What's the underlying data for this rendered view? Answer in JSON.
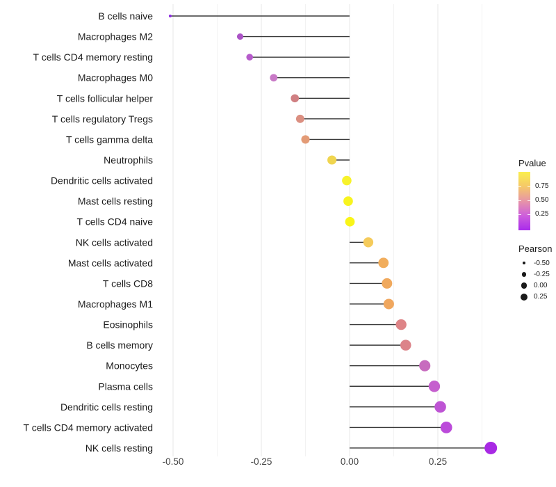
{
  "chart_data": {
    "type": "lollipop",
    "orientation": "horizontal",
    "title": "",
    "xlabel": "",
    "ylabel": "",
    "grid": "vertical-only",
    "x_axis": {
      "tick_labels": [
        "-0.50",
        "-0.25",
        "0.00",
        "0.25"
      ],
      "tick_values": [
        -0.5,
        -0.25,
        0.0,
        0.25
      ],
      "xlim": [
        -0.552,
        0.413
      ],
      "minor_tick_values": [
        -0.375,
        -0.125,
        0.125,
        0.375
      ]
    },
    "points": [
      {
        "label": "B cells naive",
        "pearson": -0.508,
        "color": "#8C2BE0"
      },
      {
        "label": "Macrophages M2",
        "pearson": -0.31,
        "color": "#AB53C6"
      },
      {
        "label": "T cells CD4 memory resting",
        "pearson": -0.283,
        "color": "#B65BCB"
      },
      {
        "label": "Macrophages M0",
        "pearson": -0.215,
        "color": "#C879C6"
      },
      {
        "label": "T cells follicular helper",
        "pearson": -0.155,
        "color": "#D08083"
      },
      {
        "label": "T cells regulatory  Tregs",
        "pearson": -0.14,
        "color": "#DB8F81"
      },
      {
        "label": "T cells gamma delta",
        "pearson": -0.125,
        "color": "#E39B76"
      },
      {
        "label": "Neutrophils",
        "pearson": -0.05,
        "color": "#F0D54F"
      },
      {
        "label": "Dendritic cells activated",
        "pearson": -0.008,
        "color": "#F7F22B"
      },
      {
        "label": "Mast cells resting",
        "pearson": -0.004,
        "color": "#F8F41F"
      },
      {
        "label": "T cells CD4 naive",
        "pearson": 0.001,
        "color": "#F9F518"
      },
      {
        "label": "NK cells activated",
        "pearson": 0.053,
        "color": "#F5CB5B"
      },
      {
        "label": "Mast cells activated",
        "pearson": 0.096,
        "color": "#F1AD5C"
      },
      {
        "label": "T cells CD8",
        "pearson": 0.106,
        "color": "#F0A95D"
      },
      {
        "label": "Macrophages M1",
        "pearson": 0.111,
        "color": "#F0A75E"
      },
      {
        "label": "Eosinophils",
        "pearson": 0.146,
        "color": "#DE8487"
      },
      {
        "label": "B cells memory",
        "pearson": 0.159,
        "color": "#DC8389"
      },
      {
        "label": "Monocytes",
        "pearson": 0.213,
        "color": "#C76BBE"
      },
      {
        "label": "Plasma cells",
        "pearson": 0.24,
        "color": "#C55FCE"
      },
      {
        "label": "Dendritic cells resting",
        "pearson": 0.257,
        "color": "#BE54D4"
      },
      {
        "label": "T cells CD4 memory activated",
        "pearson": 0.274,
        "color": "#BB4ADA"
      },
      {
        "label": "NK cells resting",
        "pearson": 0.4,
        "color": "#A829E4"
      }
    ],
    "legends": {
      "pvalue": {
        "title": "Pvalue",
        "tick_labels": [
          "0.75",
          "0.50",
          "0.25"
        ],
        "gradient_stops": [
          "#FAEF4D",
          "#F5C869",
          "#E795A7",
          "#CD5EDC",
          "#A92BEB"
        ]
      },
      "pearson": {
        "title": "Pearson",
        "entries": [
          {
            "label": "-0.50",
            "r": 1.7
          },
          {
            "label": "-0.25",
            "r": 3.4
          },
          {
            "label": "0.00",
            "r": 4.4
          },
          {
            "label": "0.25",
            "r": 5.3
          }
        ]
      }
    }
  }
}
